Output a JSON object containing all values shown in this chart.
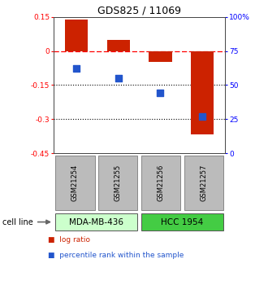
{
  "title": "GDS825 / 11069",
  "samples": [
    "GSM21254",
    "GSM21255",
    "GSM21256",
    "GSM21257"
  ],
  "log_ratio": [
    0.138,
    0.048,
    -0.048,
    -0.368
  ],
  "percentile_rank": [
    62,
    55,
    44,
    27
  ],
  "cell_lines": [
    {
      "label": "MDA-MB-436",
      "samples": [
        0,
        1
      ],
      "color": "#ccffcc"
    },
    {
      "label": "HCC 1954",
      "samples": [
        2,
        3
      ],
      "color": "#44cc44"
    }
  ],
  "left_ylim": [
    -0.45,
    0.15
  ],
  "right_ylim": [
    0,
    100
  ],
  "left_yticks": [
    0.15,
    0.0,
    -0.15,
    -0.3,
    -0.45
  ],
  "left_yticklabels": [
    "0.15",
    "0",
    "-0.15",
    "-0.3",
    "-0.45"
  ],
  "right_yticks": [
    100,
    75,
    50,
    25,
    0
  ],
  "right_yticklabels": [
    "100%",
    "75",
    "50",
    "25",
    "0"
  ],
  "hlines_black": [
    -0.15,
    -0.3
  ],
  "hline_red": 0.0,
  "bar_color": "#cc2200",
  "square_color": "#2255cc",
  "bar_width": 0.55,
  "square_size": 35,
  "gray_box_color": "#bbbbbb",
  "gray_box_edge": "#888888",
  "legend_items": [
    {
      "color": "#cc2200",
      "label": "log ratio"
    },
    {
      "color": "#2255cc",
      "label": "percentile rank within the sample"
    }
  ],
  "cell_line_label": "cell line"
}
